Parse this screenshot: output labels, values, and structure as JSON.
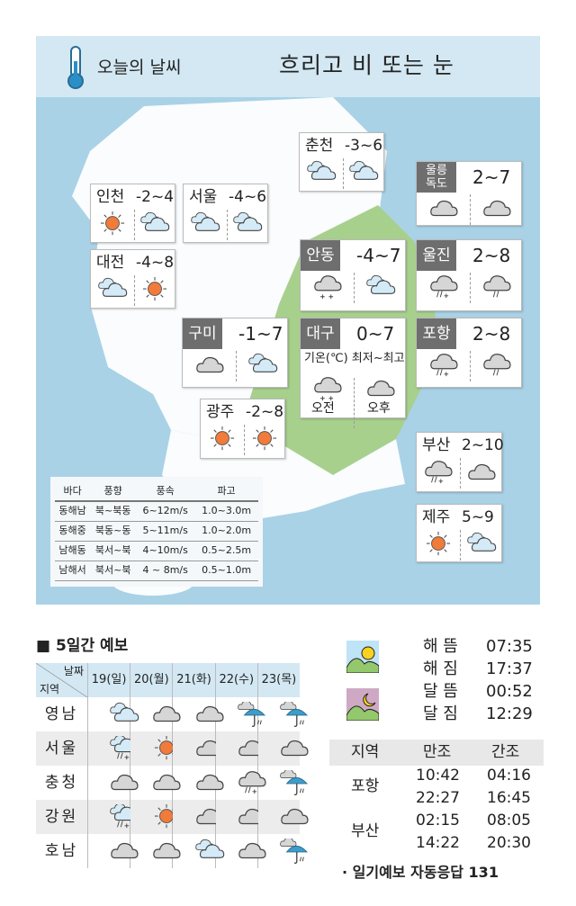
{
  "header": {
    "title": "오늘의 날씨",
    "summary": "흐리고 비 또는 눈",
    "icon": "thermometer-icon"
  },
  "cities": [
    {
      "name": "춘천",
      "temp": "-3~6",
      "icons": [
        "partly-cloudy",
        "partly-cloudy"
      ]
    },
    {
      "name": "울릉\n독도",
      "temp": "2~7",
      "icons": [
        "cloudy",
        "cloudy"
      ],
      "tag": true
    },
    {
      "name": "인천",
      "temp": "-2~4",
      "icons": [
        "sunny",
        "partly-cloudy"
      ]
    },
    {
      "name": "서울",
      "temp": "-4~6",
      "icons": [
        "partly-cloudy",
        "partly-cloudy"
      ]
    },
    {
      "name": "대전",
      "temp": "-4~8",
      "icons": [
        "partly-cloudy",
        "sunny"
      ]
    },
    {
      "name": "안동",
      "temp": "-4~7",
      "icons": [
        "snow",
        "partly-cloudy"
      ],
      "tag": true
    },
    {
      "name": "울진",
      "temp": "2~8",
      "icons": [
        "rain-snow",
        "rain"
      ],
      "tag": true
    },
    {
      "name": "구미",
      "temp": "-1~7",
      "icons": [
        "cloudy",
        "partly-cloudy"
      ],
      "tag": true
    },
    {
      "name": "대구",
      "temp": "0~7",
      "icons": [
        "snow",
        "cloudy"
      ],
      "tag": true
    },
    {
      "name": "포항",
      "temp": "2~8",
      "icons": [
        "rain-snow",
        "rain"
      ],
      "tag": true
    },
    {
      "name": "광주",
      "temp": "-2~8",
      "icons": [
        "sunny",
        "sunny"
      ]
    },
    {
      "name": "부산",
      "temp": "2~10",
      "icons": [
        "rain-snow",
        "cloudy"
      ]
    },
    {
      "name": "제주",
      "temp": "5~9",
      "icons": [
        "sunny",
        "partly-cloudy"
      ]
    }
  ],
  "legend": {
    "label": "기온(℃) 최저~최고",
    "am": "오전",
    "pm": "오후"
  },
  "sea": {
    "headers": [
      "바다",
      "풍향",
      "풍속",
      "파고"
    ],
    "rows": [
      [
        "동해남",
        "북~북동",
        "6~12m/s",
        "1.0~3.0m"
      ],
      [
        "동해중",
        "북동~동",
        "5~11m/s",
        "1.0~2.0m"
      ],
      [
        "남해동",
        "북서~북",
        "4~10m/s",
        "0.5~2.5m"
      ],
      [
        "남해서",
        "북서~북",
        "4 ~ 8m/s",
        "0.5~1.0m"
      ]
    ]
  },
  "forecast": {
    "title": "■ 5일간 예보",
    "corner_date": "날짜",
    "corner_region": "지역",
    "days": [
      "19(일)",
      "20(월)",
      "21(화)",
      "22(수)",
      "23(목)"
    ],
    "rows": [
      {
        "region": "영남",
        "icons": [
          "partly-cloudy",
          "cloudy",
          "cloudy",
          "umbrella-rain",
          "umbrella-rain"
        ]
      },
      {
        "region": "서울",
        "icons": [
          "rain-snow-blue",
          "sunny",
          "cloudy",
          "cloudy",
          "cloudy"
        ]
      },
      {
        "region": "충청",
        "icons": [
          "cloudy",
          "cloudy",
          "cloudy",
          "rain-snow",
          "umbrella-rain"
        ]
      },
      {
        "region": "강원",
        "icons": [
          "rain-snow-blue",
          "sunny",
          "cloudy",
          "cloudy",
          "cloudy"
        ]
      },
      {
        "region": "호남",
        "icons": [
          "cloudy",
          "cloudy",
          "partly-cloudy",
          "cloudy",
          "umbrella-rain"
        ]
      }
    ]
  },
  "astro": [
    {
      "label": "해 뜸",
      "time": "07:35"
    },
    {
      "label": "해 짐",
      "time": "17:37"
    },
    {
      "label": "달 뜸",
      "time": "00:52"
    },
    {
      "label": "달 짐",
      "time": "12:29"
    }
  ],
  "tide": {
    "headers": [
      "지역",
      "만조",
      "간조"
    ],
    "rows": [
      {
        "region": "포항",
        "high": [
          "10:42",
          "22:27"
        ],
        "low": [
          "04:16",
          "16:45"
        ]
      },
      {
        "region": "부산",
        "high": [
          "02:15",
          "14:22"
        ],
        "low": [
          "08:05",
          "20:30"
        ]
      }
    ]
  },
  "footer": "· 일기예보 자동응답 131",
  "colors": {
    "sea": "#a9d2e6",
    "header": "#d3e8f3",
    "land_green": "#a8d08d",
    "sun": "#f07b3a",
    "tag": "#6e6e6e"
  }
}
